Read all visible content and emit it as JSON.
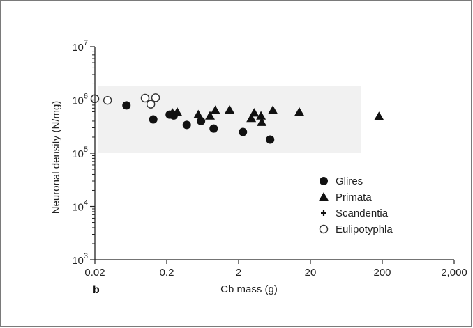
{
  "chart_data": {
    "type": "scatter",
    "panel_label": "b",
    "xlabel": "Cb mass (g)",
    "ylabel": "Neuronal density (N/mg)",
    "x_scale": "log",
    "y_scale": "log",
    "xlim": [
      0.02,
      2000
    ],
    "ylim": [
      1000,
      10000000
    ],
    "x_ticks": [
      {
        "value": 0.02,
        "label": "0.02"
      },
      {
        "value": 0.2,
        "label": "0.2"
      },
      {
        "value": 2,
        "label": "2"
      },
      {
        "value": 20,
        "label": "20"
      },
      {
        "value": 200,
        "label": "200"
      },
      {
        "value": 2000,
        "label": "2,000"
      }
    ],
    "y_ticks": [
      {
        "value": 1000,
        "base": "10",
        "exp": "3"
      },
      {
        "value": 10000,
        "base": "10",
        "exp": "4"
      },
      {
        "value": 100000,
        "base": "10",
        "exp": "5"
      },
      {
        "value": 1000000,
        "base": "10",
        "exp": "6"
      },
      {
        "value": 10000000,
        "base": "10",
        "exp": "7"
      }
    ],
    "shaded_band": {
      "x": [
        0.02,
        100
      ],
      "y": [
        100000,
        1800000
      ],
      "color": "#f1f1f1"
    },
    "legend_position": "right",
    "series": [
      {
        "name": "Glires",
        "marker": "filled-circle",
        "color": "#111111",
        "points": [
          [
            0.055,
            790000
          ],
          [
            0.13,
            430000
          ],
          [
            0.22,
            530000
          ],
          [
            0.25,
            510000
          ],
          [
            0.38,
            340000
          ],
          [
            0.6,
            400000
          ],
          [
            0.9,
            290000
          ],
          [
            2.3,
            250000
          ],
          [
            5.5,
            180000
          ]
        ]
      },
      {
        "name": "Primata",
        "marker": "filled-triangle",
        "color": "#111111",
        "points": [
          [
            0.24,
            570000
          ],
          [
            0.28,
            590000
          ],
          [
            0.55,
            530000
          ],
          [
            0.8,
            500000
          ],
          [
            0.95,
            640000
          ],
          [
            1.5,
            650000
          ],
          [
            3.0,
            450000
          ],
          [
            3.3,
            570000
          ],
          [
            4.1,
            500000
          ],
          [
            4.2,
            380000
          ],
          [
            6.0,
            640000
          ],
          [
            14,
            590000
          ],
          [
            180,
            490000
          ]
        ]
      },
      {
        "name": "Scandentia",
        "marker": "plus",
        "color": "#111111",
        "points": []
      },
      {
        "name": "Eulipotyphla",
        "marker": "open-circle",
        "color": "#333333",
        "points": [
          [
            0.02,
            1050000
          ],
          [
            0.03,
            980000
          ],
          [
            0.1,
            1080000
          ],
          [
            0.12,
            830000
          ],
          [
            0.14,
            1100000
          ]
        ]
      }
    ]
  }
}
